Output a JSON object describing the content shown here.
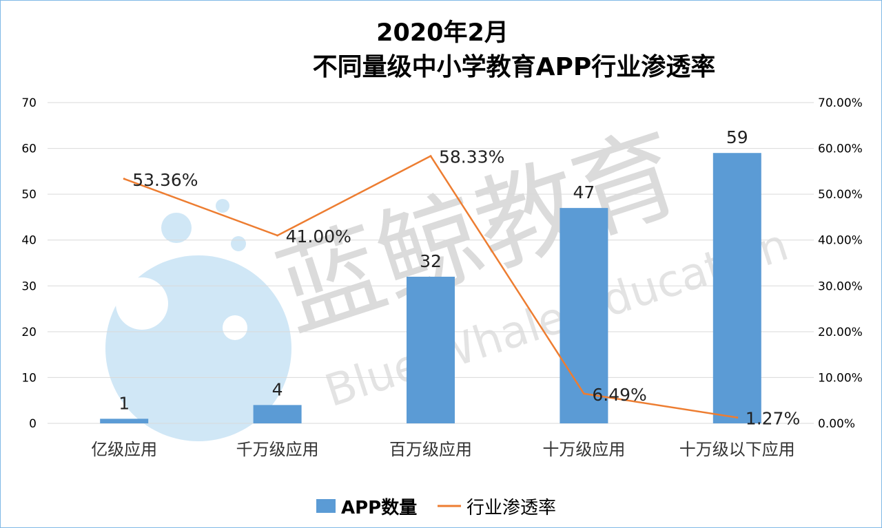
{
  "chart_data": {
    "type": "bar+line",
    "title_line1": "2020年2月",
    "title_line2": "不同量级中小学教育APP行业渗透率",
    "categories": [
      "亿级应用",
      "千万级应用",
      "百万级应用",
      "十万级应用",
      "十万级以下应用"
    ],
    "series": [
      {
        "name": "APP数量",
        "type": "bar",
        "axis": "left",
        "values": [
          1,
          4,
          32,
          47,
          59
        ],
        "labels": [
          "1",
          "4",
          "32",
          "47",
          "59"
        ],
        "color": "#5b9bd5"
      },
      {
        "name": "行业渗透率",
        "type": "line",
        "axis": "right",
        "values": [
          53.36,
          41.0,
          58.33,
          6.49,
          1.27
        ],
        "labels": [
          "53.36%",
          "41.00%",
          "58.33%",
          "6.49%",
          "1.27%"
        ],
        "color": "#ed7d31"
      }
    ],
    "y_left": {
      "min": 0,
      "max": 70,
      "ticks": [
        "0",
        "10",
        "20",
        "30",
        "40",
        "50",
        "60",
        "70"
      ]
    },
    "y_right": {
      "min": 0,
      "max": 70,
      "ticks": [
        "0.00%",
        "10.00%",
        "20.00%",
        "30.00%",
        "40.00%",
        "50.00%",
        "60.00%",
        "70.00%"
      ]
    },
    "legend_position": "bottom-center",
    "grid": true
  },
  "watermark": {
    "brand_cn": "蓝鲸教育",
    "brand_en": "Blue Whale Education"
  }
}
